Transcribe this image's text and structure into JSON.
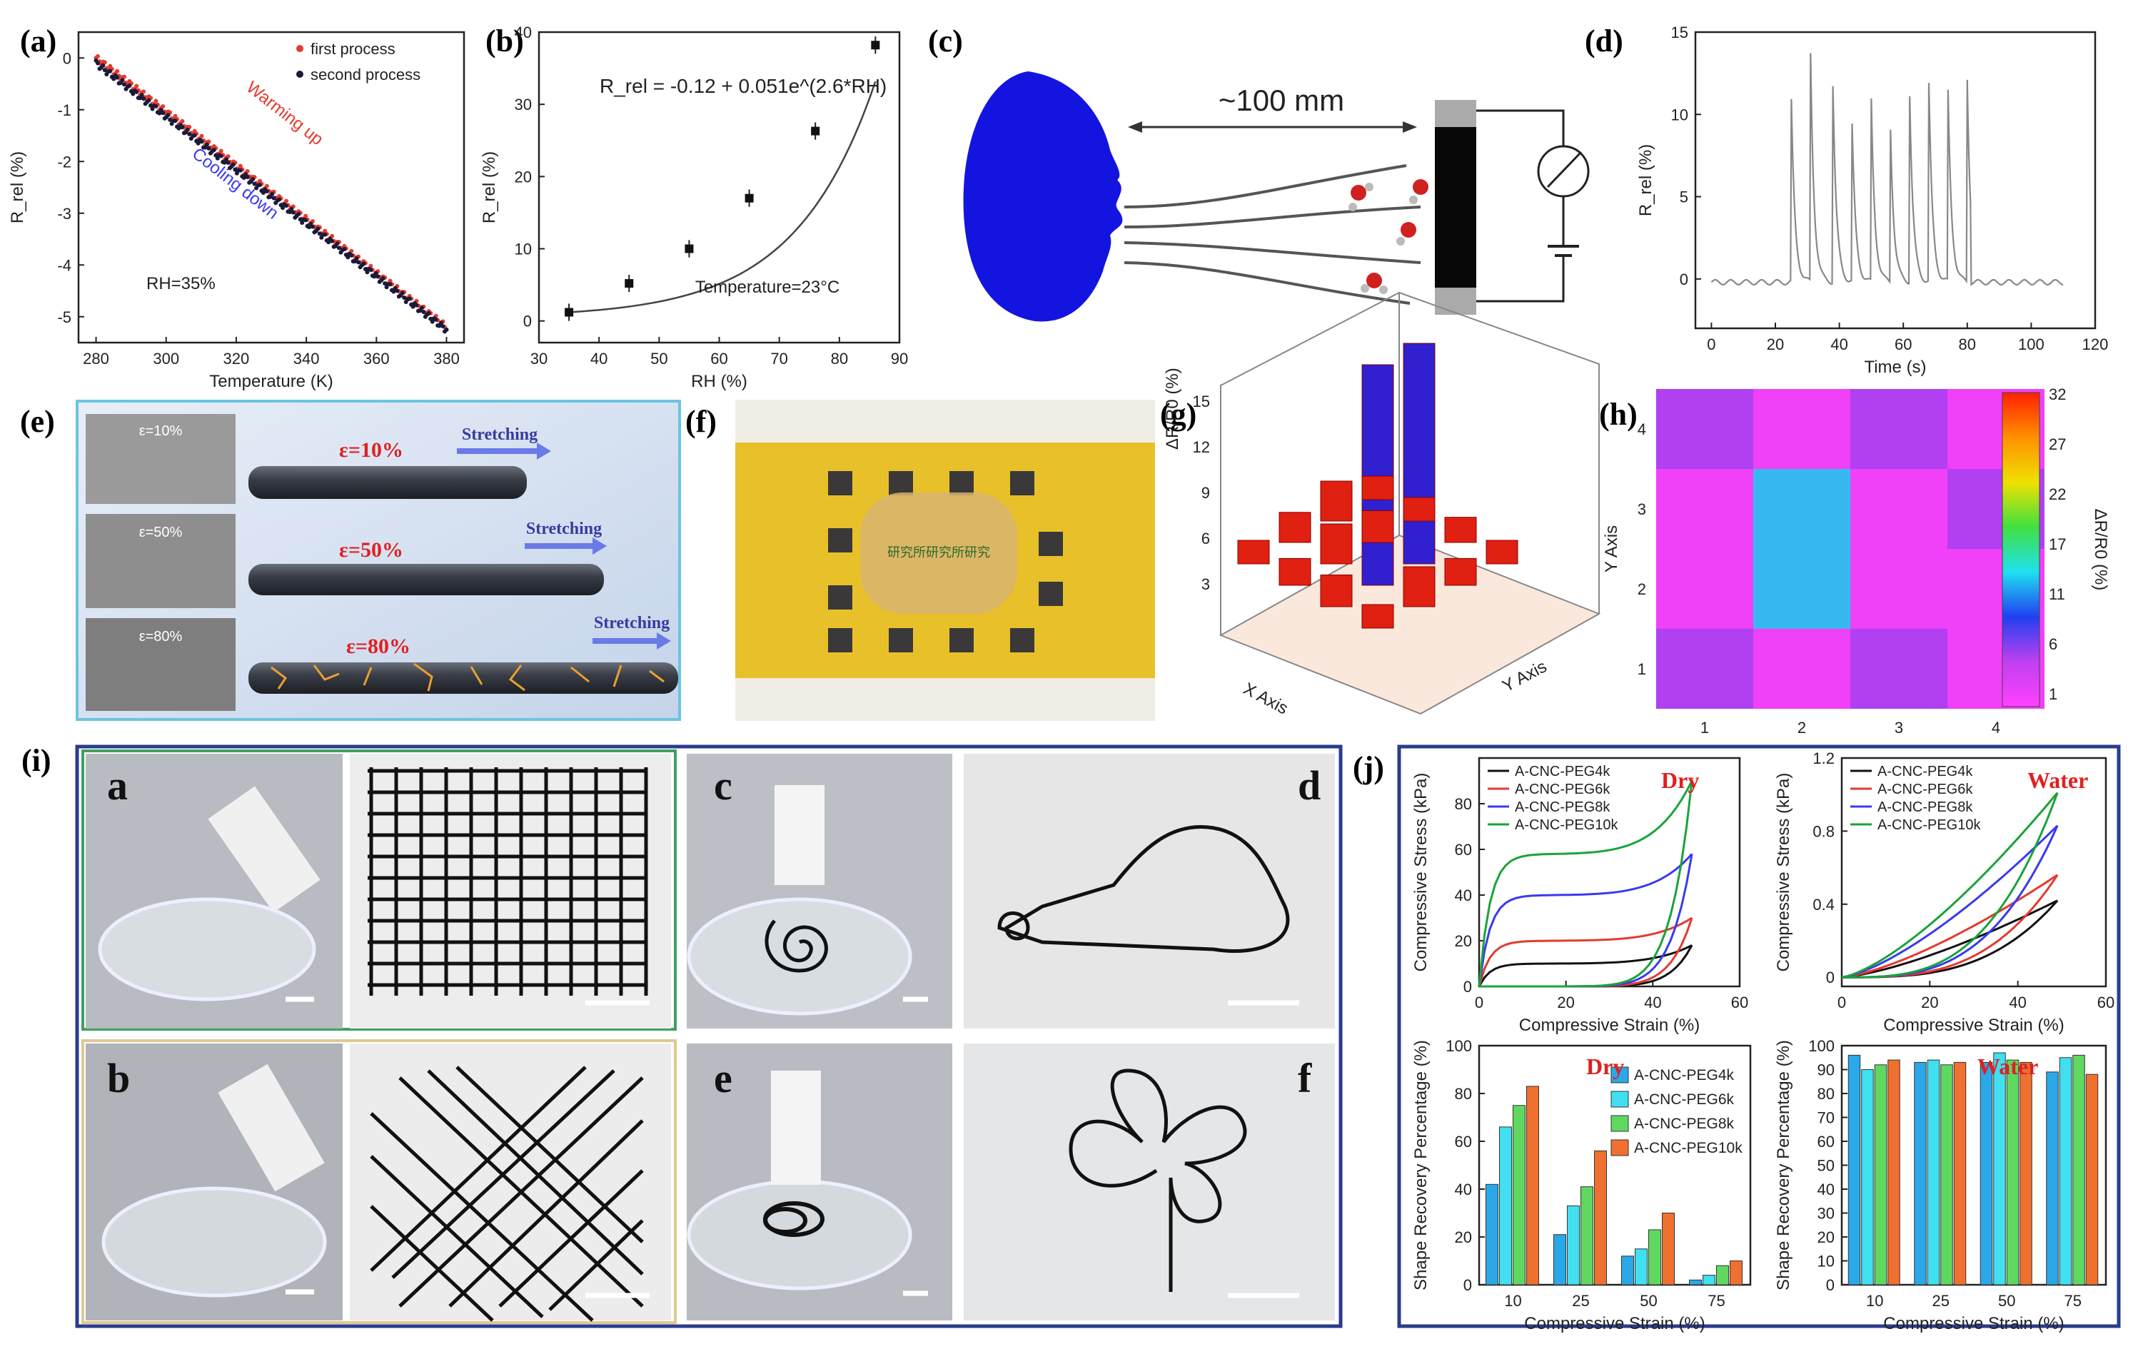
{
  "figure": {
    "panel_labels": {
      "a": "(a)",
      "b": "(b)",
      "c": "(c)",
      "d": "(d)",
      "e": "(e)",
      "f": "(f)",
      "g": "(g)",
      "h": "(h)",
      "i": "(i)",
      "j": "(j)"
    },
    "photo_labels": [
      "a",
      "b",
      "c",
      "d",
      "e",
      "f"
    ]
  },
  "panel_c": {
    "distance": "~100 mm"
  },
  "panel_e": {
    "strains": [
      "ε=10%",
      "ε=50%",
      "ε=80%"
    ],
    "action": "Stretching",
    "sem_labels": [
      "ε=10%",
      "ε=50%",
      "ε=80%"
    ]
  },
  "panel_f": {
    "chinese_text": "研究所研究所研究"
  },
  "colors": {
    "red": "#e53a2f",
    "blue": "#3a3af0",
    "green": "#1aa33a",
    "cyan": "#40e0f0",
    "orange": "#f07030",
    "skyblue": "#2aa8e8",
    "bar3d_red": "#e02010",
    "bar3d_blue": "#3020d0",
    "frame_teal": "#6cc4e0",
    "frame_navy": "#2a3c8c",
    "frame_green": "#40a060",
    "frame_tan": "#e0c890"
  },
  "chart_data": [
    {
      "id": "a",
      "type": "scatter",
      "xlabel": "Temperature (K)",
      "ylabel": "R_rel (%)",
      "xlim": [
        275,
        385
      ],
      "ylim": [
        -5.5,
        0.5
      ],
      "xticks": [
        280,
        300,
        320,
        340,
        360,
        380
      ],
      "yticks": [
        0,
        -1,
        -2,
        -3,
        -4,
        -5
      ],
      "legend": [
        "first process",
        "second process"
      ],
      "series_colors": [
        "#e53a2f",
        "#1a1a3a"
      ],
      "annotations": [
        "Warming up",
        "Cooling down",
        "RH=35%"
      ],
      "series": [
        {
          "name": "first process",
          "x": [
            280,
            300,
            320,
            340,
            360,
            380
          ],
          "y": [
            0,
            -1.15,
            -2.2,
            -3.2,
            -4.15,
            -5.2
          ]
        },
        {
          "name": "second process",
          "x": [
            280,
            300,
            320,
            340,
            360,
            380
          ],
          "y": [
            -0.1,
            -1.25,
            -2.3,
            -3.25,
            -4.2,
            -5.25
          ]
        }
      ]
    },
    {
      "id": "b",
      "type": "scatter",
      "xlabel": "RH (%)",
      "ylabel": "R_rel (%)",
      "xlim": [
        30,
        90
      ],
      "ylim": [
        -3,
        40
      ],
      "xticks": [
        30,
        40,
        50,
        60,
        70,
        80,
        90
      ],
      "yticks": [
        0,
        10,
        20,
        30,
        40
      ],
      "equation": "R_rel = -0.12 + 0.051e^(2.6*RH)",
      "annotation": "Temperature=23°C",
      "x": [
        35,
        45,
        55,
        65,
        76,
        86
      ],
      "y": [
        1.2,
        5.2,
        10,
        17,
        26.3,
        38.2
      ]
    },
    {
      "id": "d",
      "type": "line",
      "xlabel": "Time (s)",
      "ylabel": "R_rel (%)",
      "xlim": [
        -5,
        120
      ],
      "ylim": [
        -3,
        15
      ],
      "xticks": [
        0,
        20,
        40,
        60,
        80,
        100,
        120
      ],
      "yticks": [
        0,
        5,
        10,
        15
      ],
      "peaks_t": [
        25,
        31,
        38,
        44,
        50,
        56,
        62,
        68,
        74,
        80
      ],
      "peaks_h": [
        11,
        13.8,
        12,
        9.5,
        11,
        9.3,
        11.4,
        12,
        11.5,
        12.3
      ]
    },
    {
      "id": "g",
      "type": "bar3d",
      "xlabel": "X Axis",
      "ylabel": "Y Axis",
      "zlabel": "ΔR/R0 (%)",
      "zticks": [
        3,
        6,
        9,
        12,
        15
      ]
    },
    {
      "id": "h",
      "type": "heatmap",
      "xlabel": "",
      "ylabel": "Y Axis",
      "colorbar_label": "ΔR/R0 (%)",
      "xticks": [
        1,
        2,
        3,
        4
      ],
      "yticks": [
        1,
        2,
        3,
        4
      ],
      "colorbar_ticks": [
        32,
        27,
        22,
        17,
        11,
        6,
        1
      ],
      "values": [
        [
          8,
          2,
          7,
          3
        ],
        [
          2,
          13,
          3,
          8
        ],
        [
          3,
          13,
          3,
          3
        ],
        [
          7,
          3,
          7,
          3
        ]
      ]
    },
    {
      "id": "j1",
      "type": "line",
      "title": "Dry",
      "xlabel": "Compressive Strain (%)",
      "ylabel": "Compressive Stress (kPa)",
      "xlim": [
        0,
        60
      ],
      "ylim": [
        0,
        100
      ],
      "xticks": [
        0,
        20,
        40,
        60
      ],
      "yticks": [
        0,
        20,
        40,
        60,
        80
      ],
      "series_names": [
        "A-CNC-PEG4k",
        "A-CNC-PEG6k",
        "A-CNC-PEG8k",
        "A-CNC-PEG10k"
      ],
      "series": [
        {
          "name": "A-CNC-PEG4k",
          "max": 18,
          "plateau": 10
        },
        {
          "name": "A-CNC-PEG6k",
          "max": 30,
          "plateau": 20
        },
        {
          "name": "A-CNC-PEG8k",
          "max": 58,
          "plateau": 40
        },
        {
          "name": "A-CNC-PEG10k",
          "max": 90,
          "plateau": 58
        }
      ]
    },
    {
      "id": "j2",
      "type": "line",
      "title": "Water",
      "xlabel": "Compressive Strain (%)",
      "ylabel": "Compressive Stress (kPa)",
      "xlim": [
        0,
        60
      ],
      "ylim": [
        -0.05,
        1.2
      ],
      "xticks": [
        0,
        20,
        40,
        60
      ],
      "yticks": [
        0.0,
        0.4,
        0.8,
        1.2
      ],
      "series_names": [
        "A-CNC-PEG4k",
        "A-CNC-PEG6k",
        "A-CNC-PEG8k",
        "A-CNC-PEG10k"
      ],
      "series": [
        {
          "name": "A-CNC-PEG4k",
          "max": 0.42
        },
        {
          "name": "A-CNC-PEG6k",
          "max": 0.56
        },
        {
          "name": "A-CNC-PEG8k",
          "max": 0.83
        },
        {
          "name": "A-CNC-PEG10k",
          "max": 1.01
        }
      ]
    },
    {
      "id": "j3",
      "type": "bar",
      "title": "Dry",
      "xlabel": "Compressive Strain (%)",
      "ylabel": "Shape Recovery Percentage (%)",
      "ylim": [
        0,
        100
      ],
      "categories": [
        "10",
        "25",
        "50",
        "75"
      ],
      "yticks": [
        0,
        20,
        40,
        60,
        80,
        100
      ],
      "series": [
        {
          "name": "A-CNC-PEG4k",
          "values": [
            42,
            21,
            12,
            2
          ]
        },
        {
          "name": "A-CNC-PEG6k",
          "values": [
            66,
            33,
            15,
            4
          ]
        },
        {
          "name": "A-CNC-PEG8k",
          "values": [
            75,
            41,
            23,
            8
          ]
        },
        {
          "name": "A-CNC-PEG10k",
          "values": [
            83,
            56,
            30,
            10
          ]
        }
      ]
    },
    {
      "id": "j4",
      "type": "bar",
      "title": "Water",
      "xlabel": "Compressive Strain (%)",
      "ylabel": "Shape Recovery Percentage (%)",
      "ylim": [
        0,
        100
      ],
      "categories": [
        "10",
        "25",
        "50",
        "75"
      ],
      "yticks": [
        0,
        10,
        20,
        30,
        40,
        50,
        60,
        70,
        80,
        90,
        100
      ],
      "series": [
        {
          "name": "A-CNC-PEG4k",
          "values": [
            96,
            93,
            93,
            89
          ]
        },
        {
          "name": "A-CNC-PEG6k",
          "values": [
            90,
            94,
            97,
            95
          ]
        },
        {
          "name": "A-CNC-PEG8k",
          "values": [
            92,
            92,
            94,
            96
          ]
        },
        {
          "name": "A-CNC-PEG10k",
          "values": [
            94,
            93,
            93,
            88
          ]
        }
      ]
    }
  ]
}
